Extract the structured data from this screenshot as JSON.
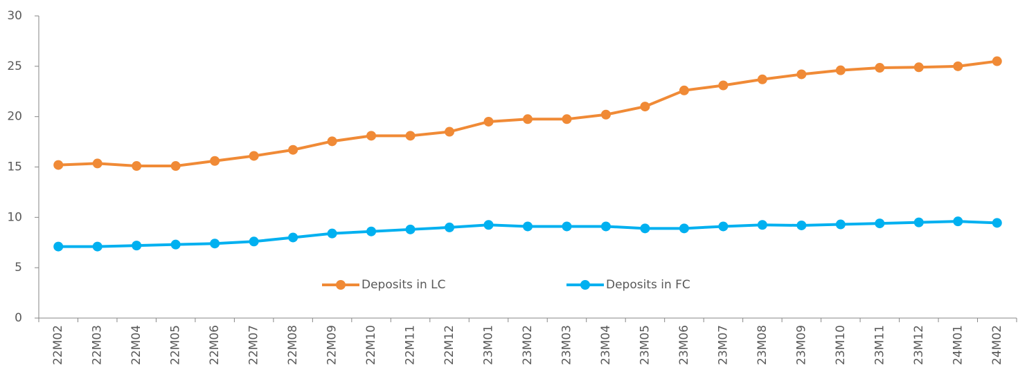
{
  "chart_data": {
    "type": "line",
    "categories": [
      "22M02",
      "22M03",
      "22M04",
      "22M05",
      "22M06",
      "22M07",
      "22M08",
      "22M09",
      "22M10",
      "22M11",
      "22M12",
      "23M01",
      "23M02",
      "23M03",
      "23M04",
      "23M05",
      "23M06",
      "23M07",
      "23M08",
      "23M09",
      "23M10",
      "23M11",
      "23M12",
      "24M01",
      "24M02"
    ],
    "series": [
      {
        "name": "Deposits in LC",
        "color": "#f08a36",
        "values": [
          15.2,
          15.35,
          15.1,
          15.1,
          15.6,
          16.1,
          16.7,
          17.55,
          18.1,
          18.1,
          18.5,
          19.5,
          19.75,
          19.75,
          20.2,
          21.0,
          22.6,
          23.1,
          23.7,
          24.2,
          24.6,
          24.85,
          24.9,
          25.0,
          25.5
        ]
      },
      {
        "name": "Deposits in FC",
        "color": "#00b0f0",
        "values": [
          7.1,
          7.1,
          7.2,
          7.3,
          7.4,
          7.6,
          8.0,
          8.4,
          8.6,
          8.8,
          9.0,
          9.25,
          9.1,
          9.1,
          9.1,
          8.9,
          8.9,
          9.1,
          9.25,
          9.2,
          9.3,
          9.4,
          9.5,
          9.6,
          9.45
        ]
      }
    ],
    "ylim": [
      0,
      30
    ],
    "yticks": [
      0,
      5,
      10,
      15,
      20,
      25,
      30
    ],
    "grid": false,
    "legend": "center"
  }
}
